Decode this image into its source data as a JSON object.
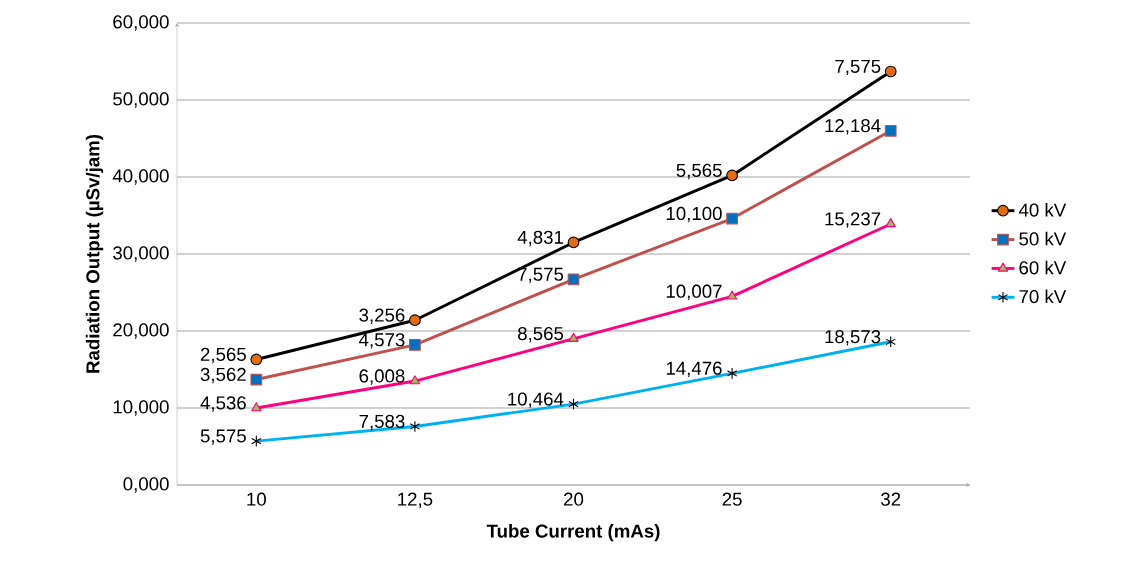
{
  "chart_data": {
    "type": "line",
    "xlabel": "Tube Current (mAs)",
    "ylabel": "Radiation Output (µSv/jam)",
    "categories": [
      "10",
      "12,5",
      "20",
      "25",
      "32"
    ],
    "ylim": [
      0,
      60
    ],
    "yticks": [
      {
        "value": 0,
        "label": "0,000"
      },
      {
        "value": 10,
        "label": "10,000"
      },
      {
        "value": 20,
        "label": "20,000"
      },
      {
        "value": 30,
        "label": "30,000"
      },
      {
        "value": 40,
        "label": "40,000"
      },
      {
        "value": 50,
        "label": "50,000"
      },
      {
        "value": 60,
        "label": "60,000"
      }
    ],
    "grid": "y",
    "legend": "right",
    "line_style": "solid",
    "series": [
      {
        "name": "40 kV",
        "color": "#000000",
        "marker": "circle",
        "values": [
          16.3,
          21.4,
          31.5,
          40.2,
          53.7
        ]
      },
      {
        "name": "50 kV",
        "color": "#c0504d",
        "marker": "square",
        "values": [
          13.7,
          18.2,
          26.7,
          34.6,
          46.0
        ]
      },
      {
        "name": "60 kV",
        "color": "#ff0080",
        "marker": "triangle",
        "values": [
          10.0,
          13.5,
          19.0,
          24.5,
          33.9
        ]
      },
      {
        "name": "70 kV",
        "color": "#00b0f0",
        "marker": "cross",
        "values": [
          5.7,
          7.6,
          10.5,
          14.5,
          18.6
        ]
      }
    ],
    "annotations": [
      {
        "text": "2,565",
        "x": "10",
        "y": 16.3
      },
      {
        "text": "3,256",
        "x": "12,5",
        "y": 21.4
      },
      {
        "text": "4,831",
        "x": "20",
        "y": 31.5
      },
      {
        "text": "5,565",
        "x": "25",
        "y": 40.2
      },
      {
        "text": "7,575",
        "x": "32",
        "y": 53.7
      },
      {
        "text": "3,562",
        "x": "10",
        "y": 13.7
      },
      {
        "text": "4,573",
        "x": "12,5",
        "y": 18.2
      },
      {
        "text": "7,575",
        "x": "20",
        "y": 26.7
      },
      {
        "text": "10,100",
        "x": "25",
        "y": 34.6
      },
      {
        "text": "12,184",
        "x": "32",
        "y": 46.0
      },
      {
        "text": "4,536",
        "x": "10",
        "y": 10.0
      },
      {
        "text": "6,008",
        "x": "12,5",
        "y": 13.5
      },
      {
        "text": "8,565",
        "x": "20",
        "y": 19.0
      },
      {
        "text": "10,007",
        "x": "25",
        "y": 24.5
      },
      {
        "text": "15,237",
        "x": "32",
        "y": 33.9
      },
      {
        "text": "5,575",
        "x": "10",
        "y": 5.7
      },
      {
        "text": "7,583",
        "x": "12,5",
        "y": 7.6
      },
      {
        "text": "10,464",
        "x": "20",
        "y": 10.5
      },
      {
        "text": "14,476",
        "x": "25",
        "y": 14.5
      },
      {
        "text": "18,573",
        "x": "32",
        "y": 18.6
      }
    ]
  }
}
